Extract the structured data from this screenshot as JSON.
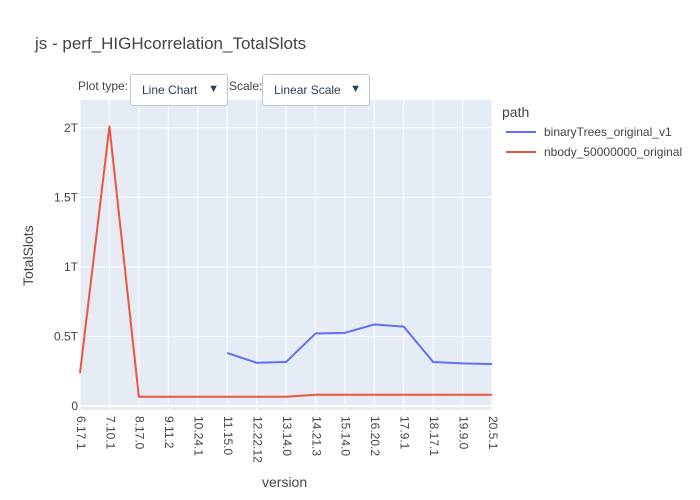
{
  "title": "js - perf_HIGHcorrelation_TotalSlots",
  "controls": {
    "plot_type_label": "Plot type:",
    "plot_type_value": "Line Chart",
    "scale_label": "Scale:",
    "scale_value": "Linear Scale",
    "dropdown_arrow": "▼"
  },
  "legend": {
    "title": "path",
    "items": [
      {
        "name": "binaryTrees_original_v1",
        "color": "#636efa"
      },
      {
        "name": "nbody_50000000_original",
        "color": "#ef553b"
      }
    ]
  },
  "chart_data": {
    "type": "line",
    "title": "js - perf_HIGHcorrelation_TotalSlots",
    "xlabel": "version",
    "ylabel": "TotalSlots",
    "categories": [
      "6.17.1",
      "7.10.1",
      "8.17.0",
      "9.11.2",
      "10.24.1",
      "11.15.0",
      "12.22.12",
      "13.14.0",
      "14.21.3",
      "15.14.0",
      "16.20.2",
      "17.9.1",
      "18.17.1",
      "19.9.0",
      "20.5.1"
    ],
    "tick_labels_visible": [
      "6.17.1",
      "7.10.1",
      "8.17.0",
      "9.11.2",
      "10.24.1",
      "11.15.0",
      "12.22.12",
      "13.14.0",
      "14.21.3",
      "15.14.0",
      "16.20.2",
      "17.9.1",
      "18.17.1",
      "19.9.0",
      "20.5.1"
    ],
    "y_ticks": [
      {
        "value": 0,
        "label": "0"
      },
      {
        "value": 0.5,
        "label": "0.5T"
      },
      {
        "value": 1,
        "label": "1T"
      },
      {
        "value": 1.5,
        "label": "1.5T"
      },
      {
        "value": 2,
        "label": "2T"
      }
    ],
    "ylim": [
      -0.03,
      2.2
    ],
    "y_unit": "T",
    "grid": true,
    "legend_position": "right",
    "series": [
      {
        "name": "binaryTrees_original_v1",
        "color": "#636efa",
        "values": [
          null,
          null,
          null,
          null,
          null,
          0.38,
          0.31,
          0.315,
          0.52,
          0.525,
          0.585,
          0.57,
          0.315,
          0.305,
          0.3
        ]
      },
      {
        "name": "nbody_50000000_original",
        "color": "#ef553b",
        "values": [
          0.235,
          2.01,
          0.065,
          0.065,
          0.065,
          0.065,
          0.065,
          0.065,
          0.08,
          0.08,
          0.08,
          0.08,
          0.08,
          0.08,
          0.08
        ]
      }
    ]
  }
}
